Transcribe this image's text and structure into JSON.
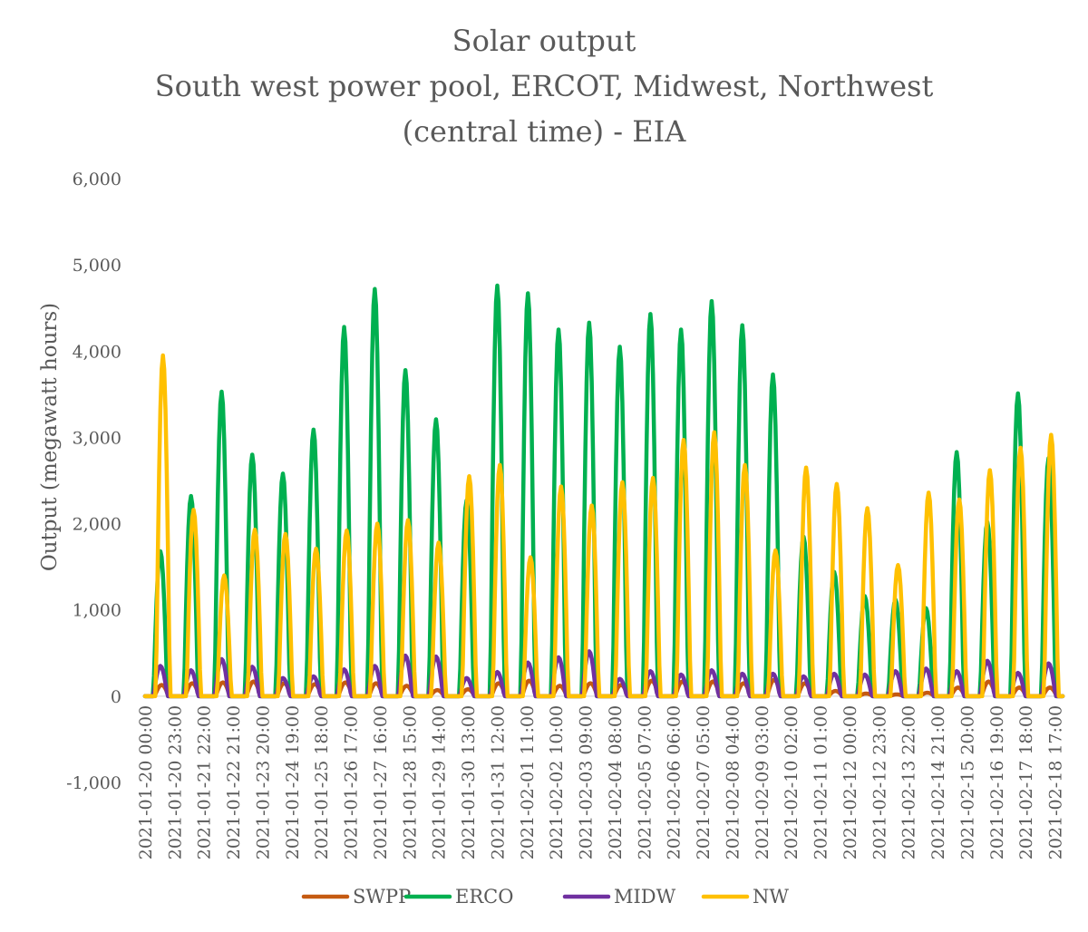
{
  "chart_data": {
    "type": "line",
    "title": [
      "Solar output",
      "South west power pool, ERCOT, Midwest, Northwest",
      "(central time) - EIA"
    ],
    "ylabel": "Output (megawatt hours)",
    "xlabel": "",
    "ylim": [
      -1000,
      6000
    ],
    "yticks": [
      -1000,
      0,
      1000,
      2000,
      3000,
      4000,
      5000,
      6000
    ],
    "ytick_labels": [
      "-1,000",
      "0",
      "1,000",
      "2,000",
      "3,000",
      "4,000",
      "5,000",
      "6,000"
    ],
    "x_tick_labels": [
      "2021-01-20 00:00",
      "2021-01-20 23:00",
      "2021-01-21 22:00",
      "2021-01-22 21:00",
      "2021-01-23 20:00",
      "2021-01-24 19:00",
      "2021-01-25 18:00",
      "2021-01-26 17:00",
      "2021-01-27 16:00",
      "2021-01-28 15:00",
      "2021-01-29 14:00",
      "2021-01-30 13:00",
      "2021-01-31 12:00",
      "2021-02-01 11:00",
      "2021-02-02 10:00",
      "2021-02-03 09:00",
      "2021-02-04 08:00",
      "2021-02-05 07:00",
      "2021-02-06 06:00",
      "2021-02-07 05:00",
      "2021-02-08 04:00",
      "2021-02-09 03:00",
      "2021-02-10 02:00",
      "2021-02-11 01:00",
      "2021-02-12 00:00",
      "2021-02-12 23:00",
      "2021-02-13 22:00",
      "2021-02-14 21:00",
      "2021-02-15 20:00",
      "2021-02-16 19:00",
      "2021-02-17 18:00",
      "2021-02-18 17:00"
    ],
    "x_tick_interval_hours": 23,
    "days": [
      "2021-01-20",
      "2021-01-21",
      "2021-01-22",
      "2021-01-23",
      "2021-01-24",
      "2021-01-25",
      "2021-01-26",
      "2021-01-27",
      "2021-01-28",
      "2021-01-29",
      "2021-01-30",
      "2021-01-31",
      "2021-02-01",
      "2021-02-02",
      "2021-02-03",
      "2021-02-04",
      "2021-02-05",
      "2021-02-06",
      "2021-02-07",
      "2021-02-08",
      "2021-02-09",
      "2021-02-10",
      "2021-02-11",
      "2021-02-12",
      "2021-02-13",
      "2021-02-14",
      "2021-02-15",
      "2021-02-16",
      "2021-02-17",
      "2021-02-18"
    ],
    "total_hours": 720,
    "series": [
      {
        "name": "SWPP",
        "color": "#C55A11",
        "peak_hour": 13,
        "half_width_hours": 5,
        "daily_peak": [
          130,
          150,
          160,
          170,
          150,
          140,
          160,
          150,
          120,
          70,
          80,
          150,
          180,
          120,
          150,
          130,
          180,
          170,
          170,
          150,
          190,
          150,
          60,
          30,
          20,
          40,
          100,
          170,
          100,
          100
        ]
      },
      {
        "name": "ERCO",
        "color": "#00B050",
        "peak_hour": 12,
        "half_width_hours": 5,
        "daily_peak": [
          1680,
          2320,
          3530,
          2800,
          2580,
          3090,
          4280,
          4720,
          3780,
          3210,
          2270,
          4760,
          4670,
          4250,
          4330,
          4050,
          4430,
          4250,
          4580,
          4300,
          3730,
          1850,
          1440,
          1160,
          1120,
          1020,
          2830,
          2020,
          3510,
          2760
        ]
      },
      {
        "name": "MIDW",
        "color": "#7030A0",
        "peak_hour": 12,
        "half_width_hours": 5,
        "daily_peak": [
          350,
          300,
          430,
          340,
          210,
          230,
          310,
          350,
          470,
          460,
          210,
          280,
          390,
          450,
          520,
          200,
          290,
          250,
          300,
          260,
          260,
          230,
          260,
          250,
          290,
          320,
          290,
          410,
          270,
          380
        ]
      },
      {
        "name": "NW",
        "color": "#FFC000",
        "peak_hour": 14,
        "half_width_hours": 5,
        "daily_peak": [
          3950,
          2160,
          1400,
          1930,
          1880,
          1710,
          1920,
          2000,
          2040,
          1780,
          2550,
          2680,
          1610,
          2430,
          2210,
          2480,
          2530,
          2970,
          3060,
          2680,
          1690,
          2650,
          2460,
          2180,
          1520,
          2360,
          2280,
          2620,
          2880,
          3030
        ]
      }
    ],
    "legend": {
      "position": "bottom",
      "entries": [
        "SWPP",
        "ERCO",
        "MIDW",
        "NW"
      ]
    },
    "grid": false
  }
}
